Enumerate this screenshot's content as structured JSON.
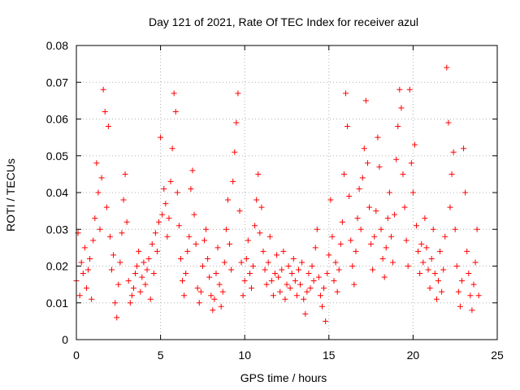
{
  "chart_data": {
    "type": "scatter",
    "title": "Day 121 of 2021, Rate Of TEC Index for receiver azul",
    "xlabel": "GPS time / hours",
    "ylabel": "ROTI / TECUs",
    "xlim": [
      0,
      25
    ],
    "ylim": [
      0,
      0.08
    ],
    "x_ticks": [
      0,
      5,
      10,
      15,
      20,
      25
    ],
    "y_ticks": [
      0,
      0.01,
      0.02,
      0.03,
      0.04,
      0.05,
      0.06,
      0.07,
      0.08
    ],
    "x_tick_labels": [
      "0",
      "5",
      "10",
      "15",
      "20",
      "25"
    ],
    "y_tick_labels": [
      "0",
      "0.01",
      "0.02",
      "0.03",
      "0.04",
      "0.05",
      "0.06",
      "0.07",
      "0.08"
    ],
    "grid": true,
    "marker": "plus",
    "marker_color": "#ff0000",
    "series": [
      {
        "points": [
          [
            0.0,
            0.016
          ],
          [
            0.1,
            0.029
          ],
          [
            0.2,
            0.012
          ],
          [
            0.3,
            0.021
          ],
          [
            0.4,
            0.018
          ],
          [
            0.5,
            0.025
          ],
          [
            0.6,
            0.014
          ],
          [
            0.7,
            0.019
          ],
          [
            0.8,
            0.022
          ],
          [
            0.9,
            0.011
          ],
          [
            1.0,
            0.027
          ],
          [
            1.1,
            0.033
          ],
          [
            1.2,
            0.048
          ],
          [
            1.3,
            0.04
          ],
          [
            1.4,
            0.03
          ],
          [
            1.5,
            0.044
          ],
          [
            1.6,
            0.068
          ],
          [
            1.7,
            0.062
          ],
          [
            1.8,
            0.036
          ],
          [
            1.9,
            0.058
          ],
          [
            2.0,
            0.028
          ],
          [
            2.1,
            0.019
          ],
          [
            2.2,
            0.023
          ],
          [
            2.3,
            0.01
          ],
          [
            2.4,
            0.006
          ],
          [
            2.5,
            0.015
          ],
          [
            2.6,
            0.021
          ],
          [
            2.7,
            0.029
          ],
          [
            2.8,
            0.038
          ],
          [
            2.9,
            0.045
          ],
          [
            3.0,
            0.032
          ],
          [
            3.1,
            0.016
          ],
          [
            3.2,
            0.01
          ],
          [
            3.3,
            0.012
          ],
          [
            3.4,
            0.014
          ],
          [
            3.5,
            0.018
          ],
          [
            3.6,
            0.02
          ],
          [
            3.7,
            0.024
          ],
          [
            3.8,
            0.013
          ],
          [
            3.9,
            0.017
          ],
          [
            4.0,
            0.021
          ],
          [
            4.1,
            0.015
          ],
          [
            4.2,
            0.019
          ],
          [
            4.3,
            0.022
          ],
          [
            4.4,
            0.011
          ],
          [
            4.5,
            0.026
          ],
          [
            4.6,
            0.018
          ],
          [
            4.7,
            0.029
          ],
          [
            4.8,
            0.024
          ],
          [
            4.9,
            0.032
          ],
          [
            5.0,
            0.055
          ],
          [
            5.1,
            0.034
          ],
          [
            5.2,
            0.041
          ],
          [
            5.3,
            0.037
          ],
          [
            5.4,
            0.028
          ],
          [
            5.5,
            0.033
          ],
          [
            5.6,
            0.043
          ],
          [
            5.7,
            0.052
          ],
          [
            5.8,
            0.067
          ],
          [
            5.9,
            0.062
          ],
          [
            6.0,
            0.04
          ],
          [
            6.1,
            0.031
          ],
          [
            6.2,
            0.022
          ],
          [
            6.3,
            0.016
          ],
          [
            6.4,
            0.012
          ],
          [
            6.5,
            0.018
          ],
          [
            6.6,
            0.024
          ],
          [
            6.7,
            0.028
          ],
          [
            6.8,
            0.041
          ],
          [
            6.9,
            0.046
          ],
          [
            7.0,
            0.034
          ],
          [
            7.1,
            0.026
          ],
          [
            7.2,
            0.014
          ],
          [
            7.3,
            0.01
          ],
          [
            7.4,
            0.013
          ],
          [
            7.5,
            0.02
          ],
          [
            7.6,
            0.027
          ],
          [
            7.7,
            0.03
          ],
          [
            7.8,
            0.022
          ],
          [
            7.9,
            0.017
          ],
          [
            8.0,
            0.012
          ],
          [
            8.1,
            0.008
          ],
          [
            8.2,
            0.011
          ],
          [
            8.3,
            0.018
          ],
          [
            8.4,
            0.025
          ],
          [
            8.5,
            0.015
          ],
          [
            8.6,
            0.009
          ],
          [
            8.7,
            0.013
          ],
          [
            8.8,
            0.021
          ],
          [
            8.9,
            0.03
          ],
          [
            9.0,
            0.038
          ],
          [
            9.1,
            0.026
          ],
          [
            9.2,
            0.019
          ],
          [
            9.3,
            0.043
          ],
          [
            9.4,
            0.051
          ],
          [
            9.5,
            0.059
          ],
          [
            9.6,
            0.067
          ],
          [
            9.7,
            0.035
          ],
          [
            9.8,
            0.021
          ],
          [
            9.9,
            0.012
          ],
          [
            10.0,
            0.016
          ],
          [
            10.1,
            0.022
          ],
          [
            10.2,
            0.027
          ],
          [
            10.3,
            0.018
          ],
          [
            10.4,
            0.014
          ],
          [
            10.5,
            0.02
          ],
          [
            10.6,
            0.031
          ],
          [
            10.7,
            0.038
          ],
          [
            10.8,
            0.045
          ],
          [
            10.9,
            0.029
          ],
          [
            11.0,
            0.036
          ],
          [
            11.1,
            0.024
          ],
          [
            11.2,
            0.019
          ],
          [
            11.3,
            0.015
          ],
          [
            11.4,
            0.021
          ],
          [
            11.5,
            0.028
          ],
          [
            11.6,
            0.016
          ],
          [
            11.7,
            0.012
          ],
          [
            11.8,
            0.018
          ],
          [
            11.9,
            0.023
          ],
          [
            12.0,
            0.017
          ],
          [
            12.1,
            0.013
          ],
          [
            12.2,
            0.019
          ],
          [
            12.3,
            0.024
          ],
          [
            12.4,
            0.011
          ],
          [
            12.5,
            0.015
          ],
          [
            12.6,
            0.02
          ],
          [
            12.7,
            0.014
          ],
          [
            12.8,
            0.018
          ],
          [
            12.9,
            0.022
          ],
          [
            13.0,
            0.016
          ],
          [
            13.1,
            0.012
          ],
          [
            13.2,
            0.019
          ],
          [
            13.3,
            0.015
          ],
          [
            13.4,
            0.021
          ],
          [
            13.5,
            0.011
          ],
          [
            13.6,
            0.007
          ],
          [
            13.7,
            0.013
          ],
          [
            13.8,
            0.018
          ],
          [
            13.9,
            0.014
          ],
          [
            14.0,
            0.02
          ],
          [
            14.1,
            0.016
          ],
          [
            14.2,
            0.025
          ],
          [
            14.3,
            0.03
          ],
          [
            14.4,
            0.017
          ],
          [
            14.5,
            0.012
          ],
          [
            14.6,
            0.009
          ],
          [
            14.7,
            0.014
          ],
          [
            14.8,
            0.005
          ],
          [
            14.9,
            0.018
          ],
          [
            15.0,
            0.023
          ],
          [
            15.1,
            0.038
          ],
          [
            15.2,
            0.028
          ],
          [
            15.3,
            0.016
          ],
          [
            15.4,
            0.021
          ],
          [
            15.5,
            0.013
          ],
          [
            15.6,
            0.019
          ],
          [
            15.7,
            0.026
          ],
          [
            15.8,
            0.032
          ],
          [
            15.9,
            0.045
          ],
          [
            16.0,
            0.067
          ],
          [
            16.1,
            0.058
          ],
          [
            16.2,
            0.039
          ],
          [
            16.3,
            0.027
          ],
          [
            16.4,
            0.02
          ],
          [
            16.5,
            0.015
          ],
          [
            16.6,
            0.024
          ],
          [
            16.7,
            0.033
          ],
          [
            16.8,
            0.041
          ],
          [
            16.9,
            0.03
          ],
          [
            17.0,
            0.044
          ],
          [
            17.1,
            0.052
          ],
          [
            17.2,
            0.065
          ],
          [
            17.3,
            0.048
          ],
          [
            17.4,
            0.036
          ],
          [
            17.5,
            0.026
          ],
          [
            17.6,
            0.019
          ],
          [
            17.7,
            0.028
          ],
          [
            17.8,
            0.035
          ],
          [
            17.9,
            0.055
          ],
          [
            18.0,
            0.047
          ],
          [
            18.1,
            0.03
          ],
          [
            18.2,
            0.022
          ],
          [
            18.3,
            0.017
          ],
          [
            18.4,
            0.025
          ],
          [
            18.5,
            0.033
          ],
          [
            18.6,
            0.04
          ],
          [
            18.7,
            0.028
          ],
          [
            18.8,
            0.021
          ],
          [
            18.9,
            0.034
          ],
          [
            19.0,
            0.049
          ],
          [
            19.1,
            0.058
          ],
          [
            19.2,
            0.068
          ],
          [
            19.3,
            0.063
          ],
          [
            19.4,
            0.045
          ],
          [
            19.5,
            0.036
          ],
          [
            19.6,
            0.027
          ],
          [
            19.7,
            0.02
          ],
          [
            19.8,
            0.068
          ],
          [
            19.9,
            0.048
          ],
          [
            20.0,
            0.04
          ],
          [
            20.1,
            0.053
          ],
          [
            20.2,
            0.031
          ],
          [
            20.3,
            0.024
          ],
          [
            20.4,
            0.018
          ],
          [
            20.5,
            0.026
          ],
          [
            20.6,
            0.021
          ],
          [
            20.7,
            0.033
          ],
          [
            20.8,
            0.025
          ],
          [
            20.9,
            0.019
          ],
          [
            21.0,
            0.014
          ],
          [
            21.1,
            0.022
          ],
          [
            21.2,
            0.03
          ],
          [
            21.3,
            0.018
          ],
          [
            21.4,
            0.011
          ],
          [
            21.5,
            0.016
          ],
          [
            21.6,
            0.024
          ],
          [
            21.7,
            0.013
          ],
          [
            21.8,
            0.019
          ],
          [
            21.9,
            0.028
          ],
          [
            22.0,
            0.074
          ],
          [
            22.1,
            0.059
          ],
          [
            22.2,
            0.036
          ],
          [
            22.3,
            0.045
          ],
          [
            22.4,
            0.051
          ],
          [
            22.5,
            0.03
          ],
          [
            22.6,
            0.02
          ],
          [
            22.7,
            0.013
          ],
          [
            22.8,
            0.009
          ],
          [
            22.9,
            0.016
          ],
          [
            23.0,
            0.052
          ],
          [
            23.1,
            0.04
          ],
          [
            23.2,
            0.024
          ],
          [
            23.3,
            0.018
          ],
          [
            23.4,
            0.012
          ],
          [
            23.5,
            0.008
          ],
          [
            23.6,
            0.015
          ],
          [
            23.7,
            0.021
          ],
          [
            23.8,
            0.03
          ],
          [
            23.9,
            0.012
          ]
        ]
      }
    ]
  }
}
